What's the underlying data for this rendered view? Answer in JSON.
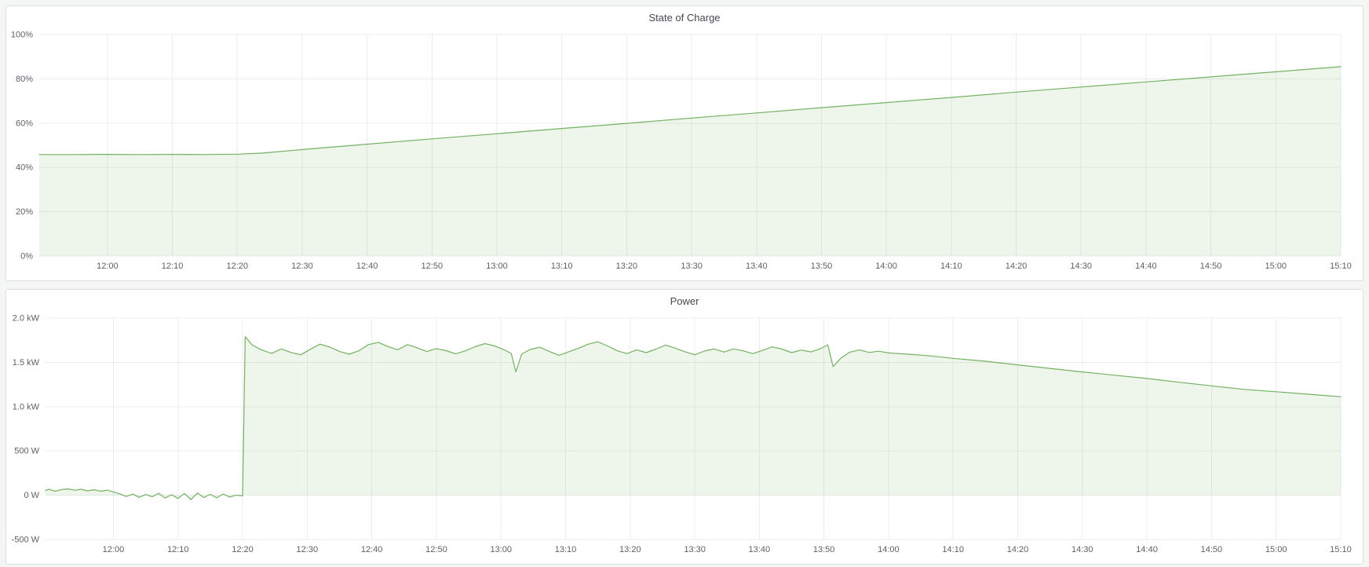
{
  "theme": {
    "page_bg": "#f4f5f5",
    "panel_bg": "#ffffff",
    "panel_border": "#dcdee0",
    "title_color": "#45494e",
    "axis_text": "#5c6066",
    "grid_color": "#ececec",
    "line_color": "#74b163",
    "fill_color": "rgba(116,177,99,0.12)"
  },
  "chart_data": [
    {
      "type": "area",
      "title": "State of Charge",
      "xlabel": "",
      "ylabel": "",
      "ylim": [
        0,
        100
      ],
      "x_start_min": 709.5,
      "x_end_min": 910,
      "grid": true,
      "legend_position": "none",
      "y_ticks": [
        {
          "v": 0,
          "label": "0%"
        },
        {
          "v": 20,
          "label": "20%"
        },
        {
          "v": 40,
          "label": "40%"
        },
        {
          "v": 60,
          "label": "60%"
        },
        {
          "v": 80,
          "label": "80%"
        },
        {
          "v": 100,
          "label": "100%"
        }
      ],
      "x_ticks": [
        {
          "t": 720,
          "label": "12:00"
        },
        {
          "t": 730,
          "label": "12:10"
        },
        {
          "t": 740,
          "label": "12:20"
        },
        {
          "t": 750,
          "label": "12:30"
        },
        {
          "t": 760,
          "label": "12:40"
        },
        {
          "t": 770,
          "label": "12:50"
        },
        {
          "t": 780,
          "label": "13:00"
        },
        {
          "t": 790,
          "label": "13:10"
        },
        {
          "t": 800,
          "label": "13:20"
        },
        {
          "t": 810,
          "label": "13:30"
        },
        {
          "t": 820,
          "label": "13:40"
        },
        {
          "t": 830,
          "label": "13:50"
        },
        {
          "t": 840,
          "label": "14:00"
        },
        {
          "t": 850,
          "label": "14:10"
        },
        {
          "t": 860,
          "label": "14:20"
        },
        {
          "t": 870,
          "label": "14:30"
        },
        {
          "t": 880,
          "label": "14:40"
        },
        {
          "t": 890,
          "label": "14:50"
        },
        {
          "t": 900,
          "label": "15:00"
        },
        {
          "t": 910,
          "label": "15:10"
        }
      ],
      "series": [
        {
          "name": "State of Charge",
          "unit": "%",
          "points": [
            [
              709.5,
              45.8
            ],
            [
              715,
              45.8
            ],
            [
              720,
              45.9
            ],
            [
              725,
              45.8
            ],
            [
              730,
              45.9
            ],
            [
              735,
              45.8
            ],
            [
              740,
              46.0
            ],
            [
              744,
              46.5
            ],
            [
              750,
              48.1
            ],
            [
              760,
              50.5
            ],
            [
              770,
              52.9
            ],
            [
              780,
              55.2
            ],
            [
              790,
              57.6
            ],
            [
              800,
              59.9
            ],
            [
              810,
              62.3
            ],
            [
              820,
              64.6
            ],
            [
              830,
              67.0
            ],
            [
              840,
              69.3
            ],
            [
              850,
              71.6
            ],
            [
              860,
              74.0
            ],
            [
              870,
              76.3
            ],
            [
              880,
              78.6
            ],
            [
              890,
              80.9
            ],
            [
              900,
              83.2
            ],
            [
              910,
              85.5
            ]
          ]
        }
      ]
    },
    {
      "type": "area",
      "title": "Power",
      "xlabel": "",
      "ylabel": "",
      "ylim": [
        -500,
        2000
      ],
      "x_start_min": 709.5,
      "x_end_min": 910,
      "grid": true,
      "legend_position": "none",
      "y_ticks": [
        {
          "v": -500,
          "label": "-500 W"
        },
        {
          "v": 0,
          "label": "0 W"
        },
        {
          "v": 500,
          "label": "500 W"
        },
        {
          "v": 1000,
          "label": "1.0 kW"
        },
        {
          "v": 1500,
          "label": "1.5 kW"
        },
        {
          "v": 2000,
          "label": "2.0 kW"
        }
      ],
      "x_ticks": [
        {
          "t": 720,
          "label": "12:00"
        },
        {
          "t": 730,
          "label": "12:10"
        },
        {
          "t": 740,
          "label": "12:20"
        },
        {
          "t": 750,
          "label": "12:30"
        },
        {
          "t": 760,
          "label": "12:40"
        },
        {
          "t": 770,
          "label": "12:50"
        },
        {
          "t": 780,
          "label": "13:00"
        },
        {
          "t": 790,
          "label": "13:10"
        },
        {
          "t": 800,
          "label": "13:20"
        },
        {
          "t": 810,
          "label": "13:30"
        },
        {
          "t": 820,
          "label": "13:40"
        },
        {
          "t": 830,
          "label": "13:50"
        },
        {
          "t": 840,
          "label": "14:00"
        },
        {
          "t": 850,
          "label": "14:10"
        },
        {
          "t": 860,
          "label": "14:20"
        },
        {
          "t": 870,
          "label": "14:30"
        },
        {
          "t": 880,
          "label": "14:40"
        },
        {
          "t": 890,
          "label": "14:50"
        },
        {
          "t": 900,
          "label": "15:00"
        },
        {
          "t": 910,
          "label": "15:10"
        }
      ],
      "series": [
        {
          "name": "Power",
          "unit": "W",
          "points": [
            [
              709.5,
              52
            ],
            [
              710,
              68
            ],
            [
              711,
              45
            ],
            [
              712,
              64
            ],
            [
              713,
              71
            ],
            [
              714,
              57
            ],
            [
              715,
              67
            ],
            [
              716,
              50
            ],
            [
              717,
              62
            ],
            [
              718,
              45
            ],
            [
              719,
              58
            ],
            [
              720,
              38
            ],
            [
              721,
              15
            ],
            [
              722,
              -14
            ],
            [
              723,
              12
            ],
            [
              724,
              -24
            ],
            [
              725,
              8
            ],
            [
              726,
              -18
            ],
            [
              727,
              22
            ],
            [
              728,
              -32
            ],
            [
              729,
              5
            ],
            [
              730,
              -36
            ],
            [
              731,
              20
            ],
            [
              732,
              -50
            ],
            [
              733,
              26
            ],
            [
              734,
              -26
            ],
            [
              735,
              10
            ],
            [
              736,
              -30
            ],
            [
              737,
              14
            ],
            [
              738,
              -20
            ],
            [
              739,
              2
            ],
            [
              740,
              -8
            ],
            [
              740.4,
              1790
            ],
            [
              741.5,
              1695
            ],
            [
              743,
              1638
            ],
            [
              744.5,
              1602
            ],
            [
              746,
              1652
            ],
            [
              747.5,
              1612
            ],
            [
              749,
              1585
            ],
            [
              750.5,
              1648
            ],
            [
              752,
              1706
            ],
            [
              753.5,
              1672
            ],
            [
              755,
              1622
            ],
            [
              756.5,
              1592
            ],
            [
              758,
              1630
            ],
            [
              759.5,
              1700
            ],
            [
              761,
              1726
            ],
            [
              762.5,
              1678
            ],
            [
              764,
              1642
            ],
            [
              765.5,
              1700
            ],
            [
              767,
              1665
            ],
            [
              768.5,
              1622
            ],
            [
              770,
              1655
            ],
            [
              771.5,
              1632
            ],
            [
              773,
              1596
            ],
            [
              774.5,
              1630
            ],
            [
              776,
              1676
            ],
            [
              777.5,
              1712
            ],
            [
              779,
              1686
            ],
            [
              780.5,
              1642
            ],
            [
              781.6,
              1600
            ],
            [
              782.3,
              1392
            ],
            [
              783.2,
              1592
            ],
            [
              784.5,
              1645
            ],
            [
              786,
              1670
            ],
            [
              787.5,
              1622
            ],
            [
              789,
              1580
            ],
            [
              790.5,
              1620
            ],
            [
              792,
              1660
            ],
            [
              793.5,
              1705
            ],
            [
              795,
              1732
            ],
            [
              796.5,
              1685
            ],
            [
              798,
              1630
            ],
            [
              799.5,
              1598
            ],
            [
              801,
              1640
            ],
            [
              802.5,
              1610
            ],
            [
              804,
              1650
            ],
            [
              805.5,
              1695
            ],
            [
              807,
              1660
            ],
            [
              808.5,
              1620
            ],
            [
              810,
              1586
            ],
            [
              811.5,
              1628
            ],
            [
              813,
              1652
            ],
            [
              814.5,
              1616
            ],
            [
              816,
              1652
            ],
            [
              817.5,
              1630
            ],
            [
              819,
              1598
            ],
            [
              820.5,
              1636
            ],
            [
              822,
              1675
            ],
            [
              823.5,
              1650
            ],
            [
              825,
              1610
            ],
            [
              826.5,
              1638
            ],
            [
              828,
              1618
            ],
            [
              829.5,
              1655
            ],
            [
              830.6,
              1698
            ],
            [
              831.4,
              1452
            ],
            [
              832.6,
              1545
            ],
            [
              834,
              1615
            ],
            [
              835.5,
              1640
            ],
            [
              837,
              1612
            ],
            [
              838.5,
              1626
            ],
            [
              840,
              1606
            ],
            [
              843,
              1592
            ],
            [
              846,
              1576
            ],
            [
              850,
              1545
            ],
            [
              855,
              1512
            ],
            [
              860,
              1472
            ],
            [
              865,
              1432
            ],
            [
              870,
              1392
            ],
            [
              875,
              1355
            ],
            [
              880,
              1318
            ],
            [
              885,
              1275
            ],
            [
              890,
              1235
            ],
            [
              895,
              1195
            ],
            [
              900,
              1168
            ],
            [
              905,
              1140
            ],
            [
              910,
              1112
            ]
          ]
        }
      ]
    }
  ]
}
